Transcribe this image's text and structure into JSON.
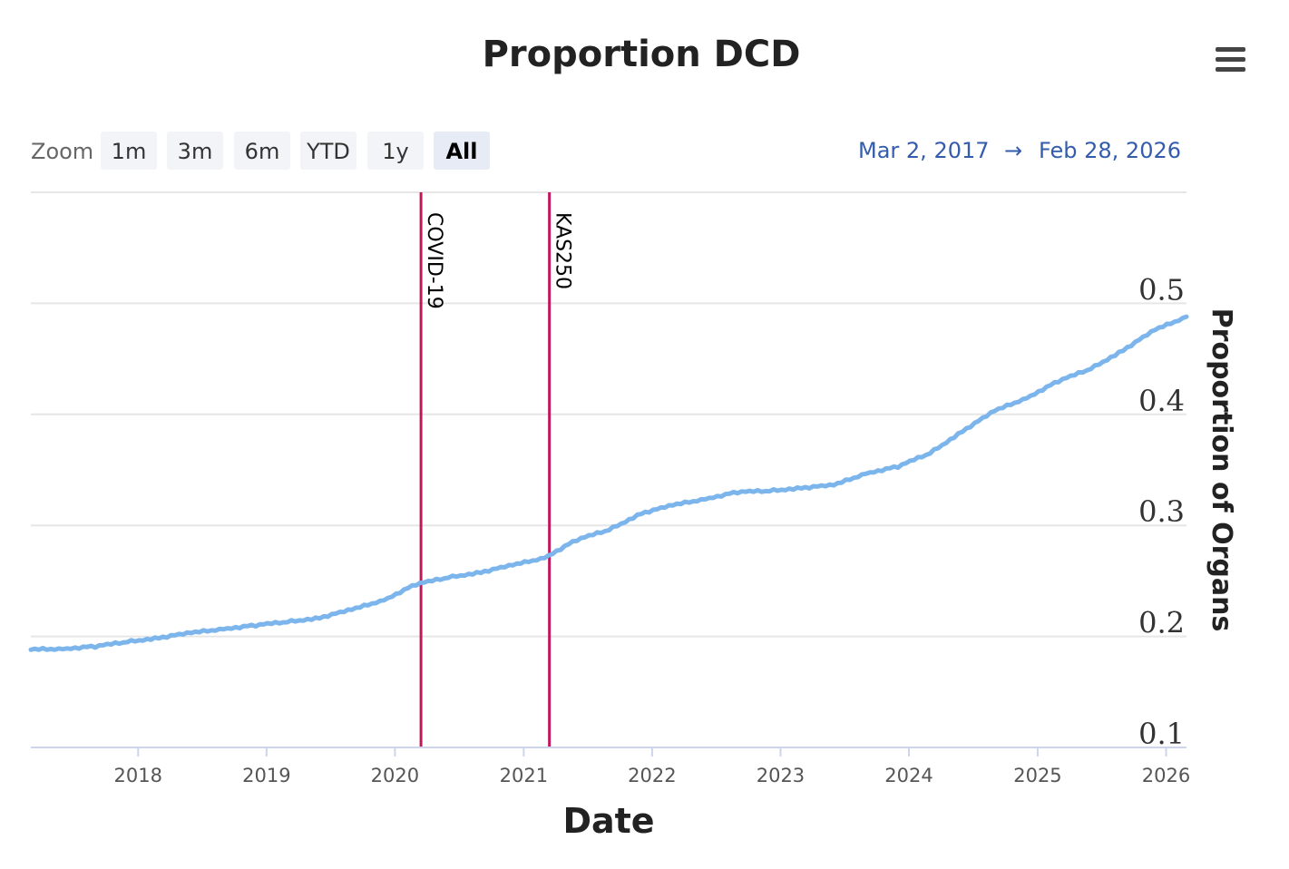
{
  "menu_icon": "hamburger-menu-icon",
  "zoom": {
    "label": "Zoom",
    "buttons": [
      "1m",
      "3m",
      "6m",
      "YTD",
      "1y",
      "All"
    ],
    "active": "All"
  },
  "range": {
    "from": "Mar 2, 2017",
    "arrow": "→",
    "to": "Feb 28, 2026"
  },
  "colors": {
    "series": "#7cb5ec",
    "plot_lines": "#c2185b",
    "range_text": "#335cad"
  },
  "chart_data": {
    "type": "line",
    "title": "Proportion DCD",
    "xlabel": "Date",
    "ylabel": "Proportion of Organs",
    "xlim": [
      "2017-03-02",
      "2026-02-28"
    ],
    "ylim": [
      0.1,
      0.6
    ],
    "x_ticks": [
      "2018",
      "2019",
      "2020",
      "2021",
      "2022",
      "2023",
      "2024",
      "2025",
      "2026"
    ],
    "y_ticks": [
      "0.1",
      "0.2",
      "0.3",
      "0.4",
      "0.5"
    ],
    "grid": true,
    "legend": false,
    "plot_lines": [
      {
        "label": "COVID-19",
        "date": "2020-03-15"
      },
      {
        "label": "KAS250",
        "date": "2021-03-15"
      }
    ],
    "series": [
      {
        "x": [
          "2017-03-02",
          "2017-06-01",
          "2017-09-01",
          "2017-12-01",
          "2018-03-01",
          "2018-06-01",
          "2018-09-01",
          "2018-12-01",
          "2019-03-01",
          "2019-06-01",
          "2019-09-01",
          "2019-12-01",
          "2020-03-01",
          "2020-06-01",
          "2020-09-01",
          "2020-12-01",
          "2021-03-01",
          "2021-06-01",
          "2021-09-01",
          "2021-12-01",
          "2022-03-01",
          "2022-06-01",
          "2022-09-01",
          "2022-12-01",
          "2023-03-01",
          "2023-06-01",
          "2023-09-01",
          "2023-12-01",
          "2024-03-01",
          "2024-06-01",
          "2024-09-01",
          "2024-12-01",
          "2025-03-01",
          "2025-06-01",
          "2025-09-01",
          "2025-12-01",
          "2026-02-28"
        ],
        "values": [
          0.188,
          0.189,
          0.191,
          0.195,
          0.199,
          0.203,
          0.207,
          0.21,
          0.213,
          0.217,
          0.224,
          0.233,
          0.247,
          0.253,
          0.258,
          0.264,
          0.271,
          0.287,
          0.296,
          0.311,
          0.318,
          0.324,
          0.33,
          0.331,
          0.334,
          0.336,
          0.347,
          0.353,
          0.365,
          0.385,
          0.403,
          0.415,
          0.43,
          0.441,
          0.458,
          0.476,
          0.488
        ]
      }
    ]
  }
}
